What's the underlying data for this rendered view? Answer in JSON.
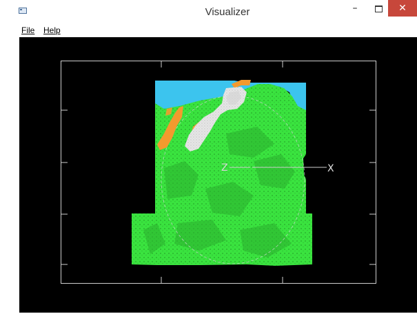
{
  "window": {
    "title": "Visualizer",
    "controls": {
      "minimize": "–",
      "maximize": "",
      "close": "✕"
    },
    "icon": "app-window-icon"
  },
  "menu": {
    "file": "File",
    "help": "Help"
  },
  "viewport": {
    "axis_labels": {
      "z": "Z",
      "x": "X"
    },
    "colors": {
      "background": "#000000",
      "terrain": "#3ae33f",
      "terrain_dark": "#2bb52e",
      "water": "#3cc4ee",
      "highlight": "#f39a2e",
      "rock": "#e6e6e6",
      "frame": "#cfcfcf"
    }
  }
}
